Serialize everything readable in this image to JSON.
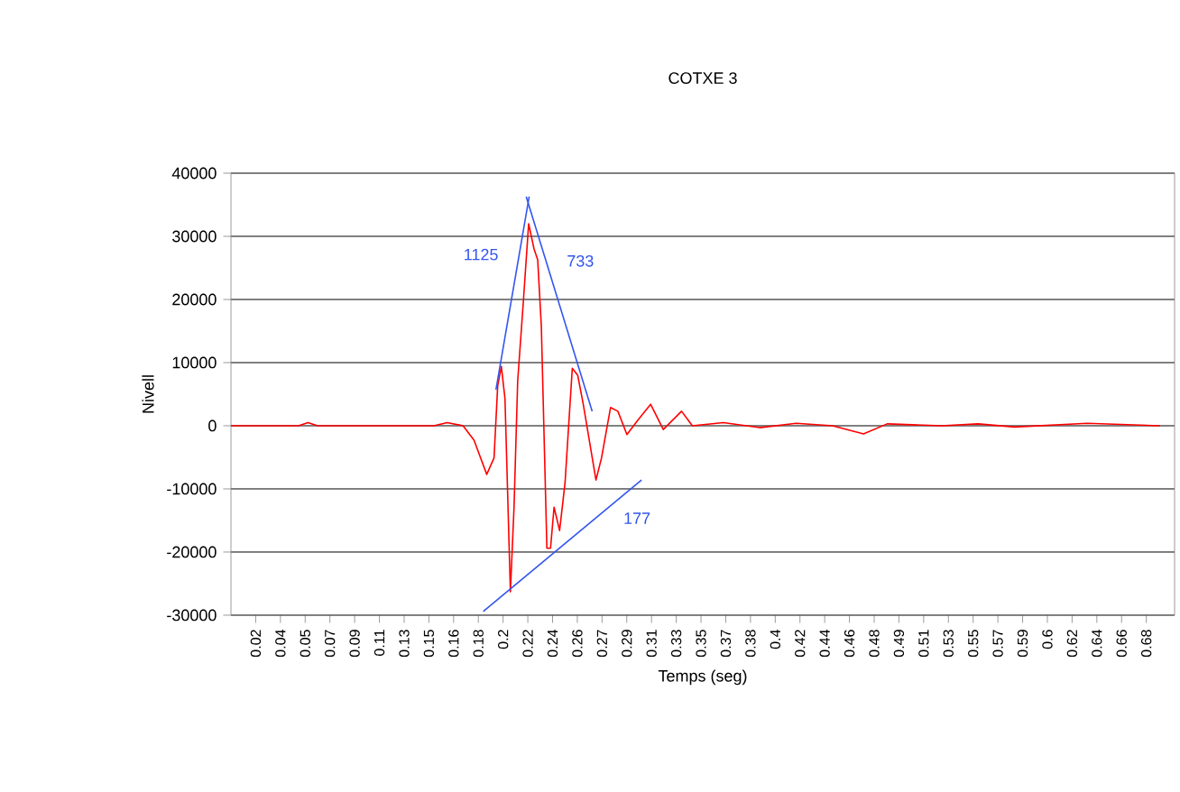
{
  "chart_data": {
    "type": "line",
    "title": "COTXE 3",
    "xlabel": "Temps (seg)",
    "ylabel": "Nivell",
    "xlim": [
      0,
      0.698
    ],
    "ylim": [
      -30000,
      40000
    ],
    "yticks": [
      -30000,
      -20000,
      -10000,
      0,
      10000,
      20000,
      30000,
      40000
    ],
    "xticks": [
      {
        "value": 0.0183,
        "label": "0.02"
      },
      {
        "value": 0.0366,
        "label": "0.04"
      },
      {
        "value": 0.0549,
        "label": "0.05"
      },
      {
        "value": 0.0732,
        "label": "0.07"
      },
      {
        "value": 0.0915,
        "label": "0.09"
      },
      {
        "value": 0.1098,
        "label": "0.11"
      },
      {
        "value": 0.1281,
        "label": "0.13"
      },
      {
        "value": 0.1464,
        "label": "0.15"
      },
      {
        "value": 0.1647,
        "label": "0.16"
      },
      {
        "value": 0.183,
        "label": "0.18"
      },
      {
        "value": 0.2013,
        "label": "0.2"
      },
      {
        "value": 0.2196,
        "label": "0.22"
      },
      {
        "value": 0.2379,
        "label": "0.24"
      },
      {
        "value": 0.2562,
        "label": "0.26"
      },
      {
        "value": 0.2745,
        "label": "0.27"
      },
      {
        "value": 0.2928,
        "label": "0.29"
      },
      {
        "value": 0.3111,
        "label": "0.31"
      },
      {
        "value": 0.3294,
        "label": "0.33"
      },
      {
        "value": 0.3477,
        "label": "0.35"
      },
      {
        "value": 0.366,
        "label": "0.37"
      },
      {
        "value": 0.3843,
        "label": "0.38"
      },
      {
        "value": 0.4026,
        "label": "0.4"
      },
      {
        "value": 0.4209,
        "label": "0.42"
      },
      {
        "value": 0.4392,
        "label": "0.44"
      },
      {
        "value": 0.4575,
        "label": "0.46"
      },
      {
        "value": 0.4758,
        "label": "0.48"
      },
      {
        "value": 0.4941,
        "label": "0.49"
      },
      {
        "value": 0.5124,
        "label": "0.51"
      },
      {
        "value": 0.5307,
        "label": "0.53"
      },
      {
        "value": 0.549,
        "label": "0.55"
      },
      {
        "value": 0.5673,
        "label": "0.57"
      },
      {
        "value": 0.5856,
        "label": "0.59"
      },
      {
        "value": 0.6039,
        "label": "0.6"
      },
      {
        "value": 0.6222,
        "label": "0.62"
      },
      {
        "value": 0.6405,
        "label": "0.64"
      },
      {
        "value": 0.6588,
        "label": "0.66"
      },
      {
        "value": 0.6771,
        "label": "0.68"
      }
    ],
    "grid": "y",
    "series": [
      {
        "color": "#ff0000",
        "x": [
          0,
          0.05,
          0.057,
          0.064,
          0.15,
          0.16,
          0.1717,
          0.1798,
          0.1892,
          0.1946,
          0.1973,
          0.2,
          0.2027,
          0.2067,
          0.2094,
          0.2121,
          0.2162,
          0.2202,
          0.2242,
          0.2269,
          0.2296,
          0.2337,
          0.2364,
          0.239,
          0.2431,
          0.2471,
          0.2525,
          0.2565,
          0.2606,
          0.27,
          0.2741,
          0.2808,
          0.2862,
          0.2929,
          0.301,
          0.3104,
          0.3198,
          0.3333,
          0.3413,
          0.3642,
          0.3911,
          0.4181,
          0.445,
          0.4679,
          0.4854,
          0.5257,
          0.5527,
          0.5796,
          0.6334,
          0.6873
        ],
        "values": [
          0,
          0,
          500,
          0,
          0,
          500,
          0,
          -2300,
          -7700,
          -5100,
          6300,
          9400,
          4300,
          -26300,
          -12900,
          7100,
          19400,
          32000,
          28000,
          26300,
          15700,
          -19400,
          -19400,
          -12900,
          -16600,
          -9100,
          9100,
          8000,
          3400,
          -8600,
          -5100,
          2900,
          2300,
          -1400,
          900,
          3400,
          -600,
          2300,
          0,
          500,
          -300,
          400,
          0,
          -1300,
          300,
          0,
          300,
          -200,
          400,
          0
        ]
      },
      {
        "color": "#3355ee",
        "x": [
          0.196,
          0.2206
        ],
        "values": [
          5700,
          36300
        ]
      },
      {
        "color": "#3355ee",
        "x": [
          0.2184,
          0.2672
        ],
        "values": [
          36300,
          2300
        ]
      },
      {
        "color": "#3355ee",
        "x": [
          0.1866,
          0.3037
        ],
        "values": [
          -29400,
          -8600
        ]
      }
    ],
    "annotations": [
      "1125",
      "733",
      "177"
    ]
  }
}
